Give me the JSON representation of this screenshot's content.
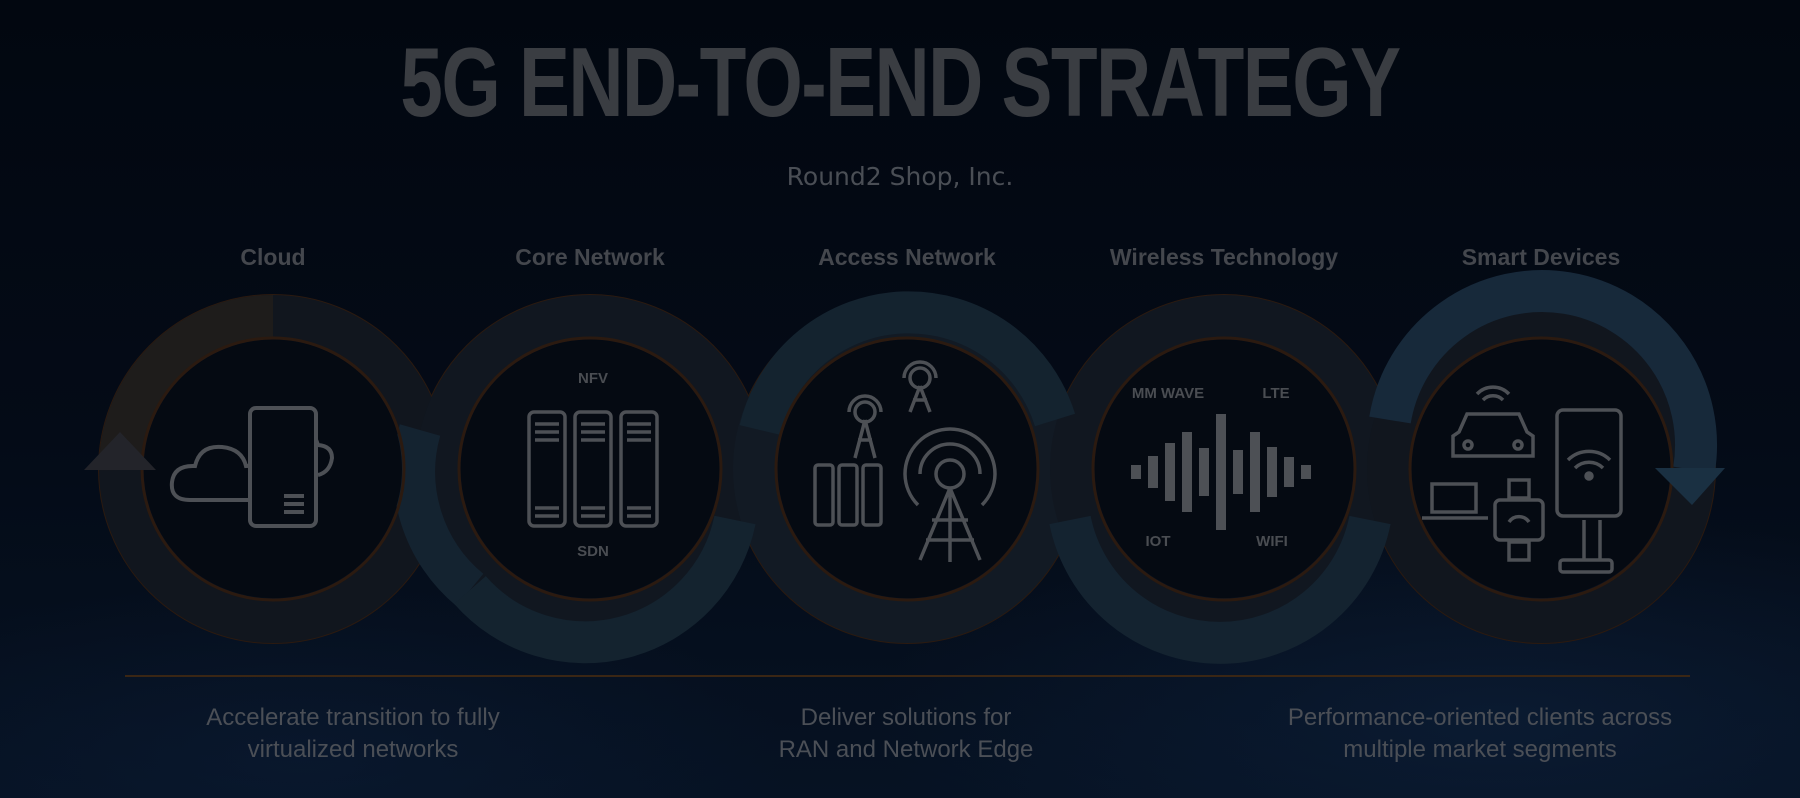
{
  "title": "5G END-TO-END STRATEGY",
  "subtitle": "Round2 Shop, Inc.",
  "stages": [
    {
      "label": "Cloud"
    },
    {
      "label": "Core Network",
      "tags": [
        "NFV",
        "SDN"
      ]
    },
    {
      "label": "Access Network"
    },
    {
      "label": "Wireless Technology",
      "tags": [
        "MM WAVE",
        "LTE",
        "IOT",
        "WIFI"
      ]
    },
    {
      "label": "Smart Devices"
    }
  ],
  "descriptions": [
    {
      "line1": "Accelerate transition to fully",
      "line2": "virtualized networks"
    },
    {
      "line1": "Deliver solutions for",
      "line2": "RAN and Network Edge"
    },
    {
      "line1": "Performance-oriented clients across",
      "line2": "multiple market segments"
    }
  ],
  "colors": {
    "background": "#030811",
    "ring_dark": "#0f141c",
    "ring_teal": "#14222d",
    "ring_edge": "#2e1c12",
    "divider": "#3a2614",
    "icon_stroke": "#4d5055",
    "title": "#3a3d42"
  },
  "icons": [
    "cloud-server-icon",
    "server-rack-icon",
    "cell-tower-icon",
    "sound-wave-icon",
    "smart-devices-icon"
  ]
}
